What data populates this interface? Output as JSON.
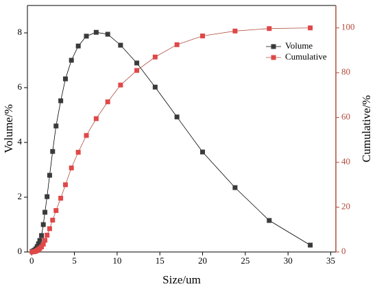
{
  "chart_data": {
    "type": "line",
    "x_label": "Size/um",
    "y_label": "Volume/%",
    "y2_label": "Cumulative/%",
    "x": [
      0.05,
      0.2,
      0.35,
      0.5,
      0.65,
      0.8,
      0.95,
      1.15,
      1.36,
      1.55,
      1.8,
      2.1,
      2.45,
      2.85,
      3.4,
      3.95,
      4.65,
      5.45,
      6.4,
      7.55,
      8.9,
      10.4,
      12.3,
      14.45,
      17.0,
      20.0,
      23.8,
      27.8,
      32.6
    ],
    "series": [
      {
        "name": "Volume",
        "color": "#3a3a3a",
        "line_color": "#000000",
        "axis": "y",
        "values": [
          0.02,
          0.04,
          0.07,
          0.12,
          0.2,
          0.3,
          0.42,
          0.6,
          1.0,
          1.45,
          2.02,
          2.8,
          3.67,
          4.6,
          5.52,
          6.32,
          7.0,
          7.52,
          7.88,
          8.02,
          7.95,
          7.55,
          6.9,
          6.02,
          4.93,
          3.65,
          2.35,
          1.15,
          0.25
        ]
      },
      {
        "name": "Cumulative",
        "color": "#e04848",
        "line_color": "#b05040",
        "axis": "y2",
        "values": [
          0.01,
          0.1,
          0.2,
          0.4,
          0.7,
          1.1,
          1.6,
          2.3,
          3.5,
          5.2,
          7.5,
          10.4,
          14.2,
          18.5,
          24,
          30,
          37.5,
          44.5,
          52,
          59.5,
          67,
          74.5,
          81,
          87,
          92.5,
          96.4,
          98.6,
          99.7,
          100
        ]
      }
    ],
    "xlim": [
      -0.5,
      35.6
    ],
    "xticks": [
      0,
      5,
      10,
      15,
      20,
      25,
      30,
      35
    ],
    "ylim": [
      0,
      9
    ],
    "yticks": [
      0,
      2,
      4,
      6,
      8
    ],
    "y2lim": [
      0,
      110
    ],
    "y2ticks": [
      0,
      20,
      40,
      60,
      80,
      100
    ],
    "y2_color": "#b04a3a",
    "legend": "upper right"
  }
}
